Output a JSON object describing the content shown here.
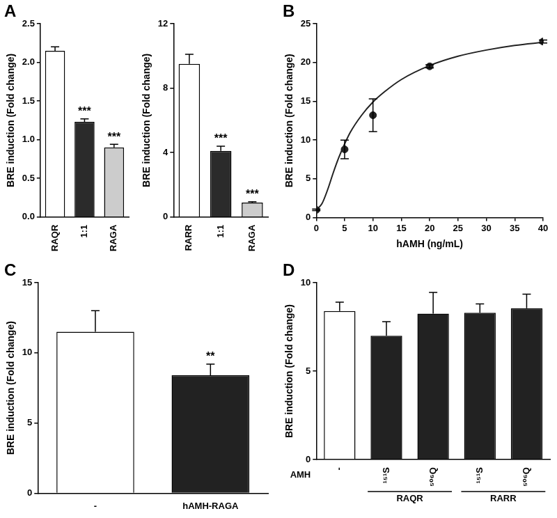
{
  "chart_data": [
    {
      "panel": "A",
      "type": "bar",
      "categories": [
        "RAQR",
        "1:1",
        "RAGA"
      ],
      "values": [
        2.15,
        1.23,
        0.9
      ],
      "errors": [
        0.05,
        0.04,
        0.04
      ],
      "significance": [
        null,
        "***",
        "***"
      ],
      "colors": [
        "#ffffff",
        "#2b2b2b",
        "#cccccc"
      ],
      "ylabel": "BRE induction (Fold change)",
      "ylim": [
        0,
        2.5
      ],
      "yticks": [
        {
          "value": 0,
          "label": "0.0"
        },
        0.5,
        {
          "value": 1,
          "label": "1.0"
        },
        1.5,
        {
          "value": 2,
          "label": "2.0"
        },
        2.5
      ],
      "grid": false
    },
    {
      "type": "bar",
      "categories": [
        "RARR",
        "1:1",
        "RAGA"
      ],
      "values": [
        9.5,
        4.1,
        0.9
      ],
      "errors": [
        0.6,
        0.3,
        0.05
      ],
      "significance": [
        null,
        "***",
        "***"
      ],
      "colors": [
        "#ffffff",
        "#2b2b2b",
        "#cccccc"
      ],
      "ylabel": "BRE induction (Fold change)",
      "ylim": [
        0,
        12
      ],
      "yticks": [
        0,
        4,
        8,
        12
      ],
      "grid": false
    },
    {
      "panel": "B",
      "type": "scatter",
      "xlabel": "hAMH (ng/mL)",
      "ylabel": "BRE induction (Fold change)",
      "series": [
        {
          "type": "scatter",
          "marker": "circle",
          "color": "#222222",
          "x": [
            0,
            5,
            10,
            20,
            40
          ],
          "values": [
            1,
            8.8,
            13.2,
            19.5,
            22.7
          ],
          "errors": [
            0.1,
            1.2,
            2.1,
            0.2,
            0.2
          ]
        },
        {
          "type": "line",
          "line_style": "solid",
          "color": "#222222",
          "x": [
            0,
            1,
            2,
            3,
            4,
            5,
            6,
            8,
            10,
            12,
            15,
            20,
            25,
            30,
            35,
            40
          ],
          "values": [
            1,
            1.8,
            3.6,
            5.8,
            7.8,
            9.5,
            11.0,
            13.2,
            14.9,
            16.2,
            17.8,
            19.6,
            20.8,
            21.6,
            22.2,
            22.6
          ]
        }
      ],
      "xlim": [
        0,
        40
      ],
      "xticks": [
        0,
        5,
        10,
        15,
        20,
        25,
        30,
        35,
        40
      ],
      "ylim": [
        0,
        25
      ],
      "yticks": [
        0,
        5,
        10,
        15,
        20,
        25
      ],
      "grid": false
    },
    {
      "panel": "C",
      "type": "bar",
      "categories": [
        "-",
        "hAMH-RAGA"
      ],
      "values": [
        11.5,
        8.4
      ],
      "errors": [
        1.5,
        0.8
      ],
      "significance": [
        null,
        "**"
      ],
      "colors": [
        "#ffffff",
        "#222222"
      ],
      "ylabel": "BRE induction (Fold change)",
      "ylim": [
        0,
        15
      ],
      "yticks": [
        0,
        5,
        10,
        15
      ],
      "grid": false
    },
    {
      "panel": "D",
      "type": "bar",
      "xlabel": "AMH",
      "categories": [
        "-",
        "¹⁵¹S",
        "⁵⁰⁶Q",
        "¹⁵¹S",
        "⁵⁰⁶Q"
      ],
      "group_labels": [
        null,
        "RAQR",
        "RAQR",
        "RARR",
        "RARR"
      ],
      "values": [
        8.4,
        7.0,
        8.25,
        8.3,
        8.55
      ],
      "errors": [
        0.5,
        0.8,
        1.2,
        0.5,
        0.8
      ],
      "colors": [
        "#ffffff",
        "#222222",
        "#222222",
        "#222222",
        "#222222"
      ],
      "ylabel": "BRE induction (Fold change)",
      "ylim": [
        0,
        10
      ],
      "yticks": [
        0,
        5,
        10
      ],
      "grid": false
    }
  ]
}
